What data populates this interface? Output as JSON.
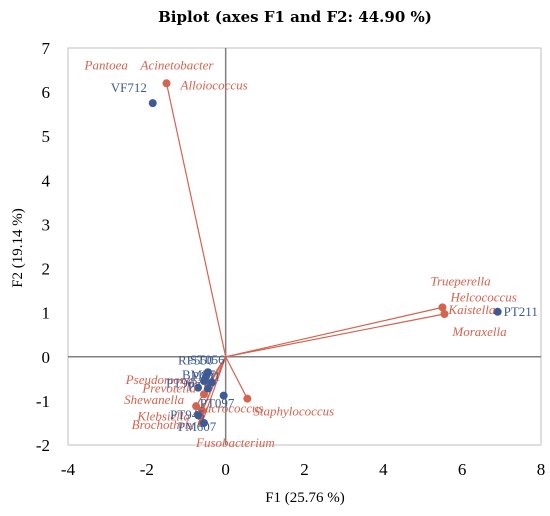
{
  "chart_data": {
    "type": "scatter",
    "title": "Biplot (axes F1 and F2: 44.90 %)",
    "xlabel": "F1 (25.76 %)",
    "ylabel": "F2 (19.14 %)",
    "xlim": [
      -4,
      8
    ],
    "ylim": [
      -2,
      7
    ],
    "xticks": [
      "-4",
      "-2",
      "0",
      "2",
      "4",
      "6",
      "8"
    ],
    "yticks": [
      "-2",
      "-1",
      "0",
      "1",
      "2",
      "3",
      "4",
      "5",
      "6",
      "7"
    ],
    "colors": {
      "observations": "#3d5a94",
      "variables": "#d4634f",
      "vector": "#d4634f",
      "axis": "#7f7f7f"
    },
    "observations": [
      {
        "label": "VF712",
        "x": -1.85,
        "y": 5.75
      },
      {
        "label": "PT211",
        "x": 6.9,
        "y": 1.02
      },
      {
        "label": "ST056",
        "x": -0.45,
        "y": -0.35
      },
      {
        "label": "RF550",
        "x": -0.5,
        "y": -0.45
      },
      {
        "label": "BM57",
        "x": -0.55,
        "y": -0.55
      },
      {
        "label": "PA31",
        "x": -0.35,
        "y": -0.58
      },
      {
        "label": "PT90",
        "x": -0.7,
        "y": -0.7
      },
      {
        "label": "PT3",
        "x": -0.45,
        "y": -0.72
      },
      {
        "label": "PT097",
        "x": -0.05,
        "y": -0.88
      },
      {
        "label": "PT945",
        "x": -0.7,
        "y": -1.32
      },
      {
        "label": "PM607",
        "x": -0.55,
        "y": -1.5
      }
    ],
    "variables": [
      {
        "label": "Acinetobacter",
        "x": -1.5,
        "y": 6.2
      },
      {
        "label": "Pantoea",
        "x": -1.5,
        "y": 6.2
      },
      {
        "label": "Alloiococcus",
        "x": -1.5,
        "y": 6.2
      },
      {
        "label": "Trueperella",
        "x": 5.5,
        "y": 1.12
      },
      {
        "label": "Helcococcus",
        "x": 5.5,
        "y": 1.12
      },
      {
        "label": "Kaistella",
        "x": 5.55,
        "y": 0.97
      },
      {
        "label": "Moraxella",
        "x": 5.55,
        "y": 0.97
      },
      {
        "label": "Staphylococcus",
        "x": 0.55,
        "y": -0.95
      },
      {
        "label": "Pseudomonas",
        "x": -0.45,
        "y": -0.62
      },
      {
        "label": "Prevotella",
        "x": -0.55,
        "y": -0.85
      },
      {
        "label": "Shewanella",
        "x": -0.75,
        "y": -1.12
      },
      {
        "label": "Macrococcus",
        "x": -0.6,
        "y": -1.22
      },
      {
        "label": "Klebsiella",
        "x": -0.65,
        "y": -1.35
      },
      {
        "label": "Brochothrix",
        "x": -0.6,
        "y": -1.5
      },
      {
        "label": "Fusobacterium",
        "x": -0.6,
        "y": -1.5
      }
    ]
  }
}
